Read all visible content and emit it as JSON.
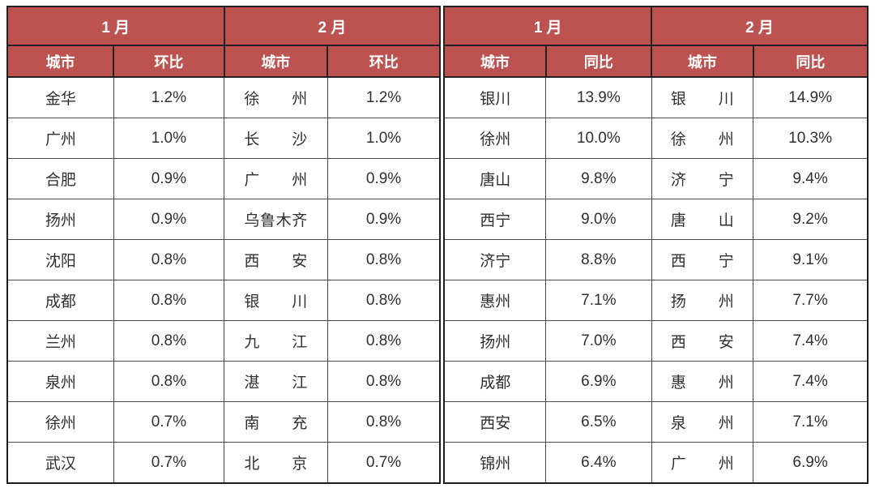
{
  "colors": {
    "header_bg": "#BC5350",
    "header_text": "#FFFFFF",
    "body_text": "#303030",
    "grid_line": "#4A4A4A",
    "outer_border": "#1C1C1C",
    "page_bg": "#FFFFFF"
  },
  "chart_data": {
    "type": "table",
    "tables": [
      {
        "name": "mom",
        "groups": [
          {
            "month": "1 月",
            "city_header": "城市",
            "value_header": "环比",
            "city_spacing": "normal",
            "rows": [
              [
                "金华",
                "1.2%"
              ],
              [
                "广州",
                "1.0%"
              ],
              [
                "合肥",
                "0.9%"
              ],
              [
                "扬州",
                "0.9%"
              ],
              [
                "沈阳",
                "0.8%"
              ],
              [
                "成都",
                "0.8%"
              ],
              [
                "兰州",
                "0.8%"
              ],
              [
                "泉州",
                "0.8%"
              ],
              [
                "徐州",
                "0.7%"
              ],
              [
                "武汉",
                "0.7%"
              ]
            ]
          },
          {
            "month": "2 月",
            "city_header": "城市",
            "value_header": "环比",
            "city_spacing": "justified",
            "rows": [
              [
                "徐州",
                "1.2%"
              ],
              [
                "长沙",
                "1.0%"
              ],
              [
                "广州",
                "0.9%"
              ],
              [
                "乌鲁木齐",
                "0.9%"
              ],
              [
                "西安",
                "0.8%"
              ],
              [
                "银川",
                "0.8%"
              ],
              [
                "九江",
                "0.8%"
              ],
              [
                "湛江",
                "0.8%"
              ],
              [
                "南充",
                "0.8%"
              ],
              [
                "北京",
                "0.7%"
              ]
            ]
          }
        ]
      },
      {
        "name": "yoy",
        "groups": [
          {
            "month": "1 月",
            "city_header": "城市",
            "value_header": "同比",
            "city_spacing": "normal",
            "rows": [
              [
                "银川",
                "13.9%"
              ],
              [
                "徐州",
                "10.0%"
              ],
              [
                "唐山",
                "9.8%"
              ],
              [
                "西宁",
                "9.0%"
              ],
              [
                "济宁",
                "8.8%"
              ],
              [
                "惠州",
                "7.1%"
              ],
              [
                "扬州",
                "7.0%"
              ],
              [
                "成都",
                "6.9%"
              ],
              [
                "西安",
                "6.5%"
              ],
              [
                "锦州",
                "6.4%"
              ]
            ]
          },
          {
            "month": "2 月",
            "city_header": "城市",
            "value_header": "同比",
            "city_spacing": "justified",
            "rows": [
              [
                "银川",
                "14.9%"
              ],
              [
                "徐州",
                "10.3%"
              ],
              [
                "济宁",
                "9.4%"
              ],
              [
                "唐山",
                "9.2%"
              ],
              [
                "西宁",
                "9.1%"
              ],
              [
                "扬州",
                "7.7%"
              ],
              [
                "西安",
                "7.4%"
              ],
              [
                "惠州",
                "7.4%"
              ],
              [
                "泉州",
                "7.1%"
              ],
              [
                "广州",
                "6.9%"
              ]
            ]
          }
        ]
      }
    ]
  }
}
